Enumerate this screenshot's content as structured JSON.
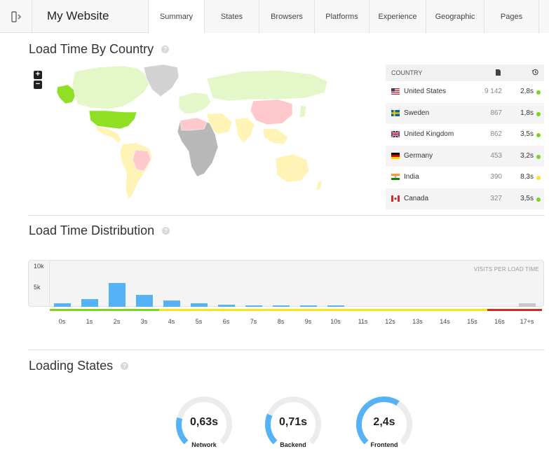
{
  "header": {
    "title": "My Website",
    "tabs": [
      {
        "label": "Summary",
        "active": true
      },
      {
        "label": "States",
        "active": false
      },
      {
        "label": "Browsers",
        "active": false
      },
      {
        "label": "Platforms",
        "active": false
      },
      {
        "label": "Experience",
        "active": false
      },
      {
        "label": "Geographic",
        "active": false
      },
      {
        "label": "Pages",
        "active": false
      }
    ]
  },
  "map_section": {
    "title": "Load Time By Country",
    "help": "?",
    "zoom_in": "+",
    "zoom_out": "−",
    "table": {
      "header": {
        "country": "COUNTRY",
        "visits_icon": "document-icon",
        "time_icon": "history-icon"
      },
      "rows": [
        {
          "country": "United States",
          "visits": "9 142",
          "time": "2,8s",
          "status_color": "#7ed321",
          "flag": "flag-us-icon"
        },
        {
          "country": "Sweden",
          "visits": "867",
          "time": "1,8s",
          "status_color": "#7ed321",
          "flag": "flag-se-icon"
        },
        {
          "country": "United Kingdom",
          "visits": "862",
          "time": "3,5s",
          "status_color": "#7ed321",
          "flag": "flag-gb-icon"
        },
        {
          "country": "Germany",
          "visits": "453",
          "time": "3,2s",
          "status_color": "#7ed321",
          "flag": "flag-de-icon"
        },
        {
          "country": "India",
          "visits": "390",
          "time": "8,3s",
          "status_color": "#f8e71c",
          "flag": "flag-in-icon"
        },
        {
          "country": "Canada",
          "visits": "327",
          "time": "3,5s",
          "status_color": "#7ed321",
          "flag": "flag-ca-icon"
        }
      ]
    }
  },
  "distribution_section": {
    "title": "Load Time Distribution",
    "help": "?",
    "chart_label": "VISITS PER LOAD TIME"
  },
  "chart_data": {
    "type": "bar",
    "categories": [
      "0s",
      "1s",
      "2s",
      "3s",
      "4s",
      "5s",
      "6s",
      "7s",
      "8s",
      "9s",
      "10s",
      "11s",
      "12s",
      "13s",
      "14s",
      "15s",
      "16s",
      "17+s"
    ],
    "values": [
      900,
      2100,
      6200,
      3200,
      1600,
      1000,
      600,
      450,
      300,
      200,
      150,
      0,
      0,
      0,
      0,
      0,
      0,
      1000
    ],
    "ylim": [
      0,
      12000
    ],
    "yticks": [
      "10k",
      "5k"
    ],
    "ytick_values": [
      10000,
      5000
    ],
    "bar_color": "#55b2f7",
    "overflow_bar_color": "#c8c8c8",
    "bands": [
      {
        "from": 0,
        "to": 4,
        "color": "#7ed321"
      },
      {
        "from": 4,
        "to": 16,
        "color": "#f8e71c"
      },
      {
        "from": 16,
        "to": 18,
        "color": "#e0242a"
      }
    ]
  },
  "states_section": {
    "title": "Loading States",
    "help": "?",
    "gauges": [
      {
        "name": "Network",
        "value": "0,63s",
        "fraction": 0.22
      },
      {
        "name": "Backend",
        "value": "0,71s",
        "fraction": 0.25
      },
      {
        "name": "Frontend",
        "value": "2,4s",
        "fraction": 0.62
      }
    ],
    "gauge_color": "#55b2f7",
    "gauge_track_color": "#ececec"
  }
}
